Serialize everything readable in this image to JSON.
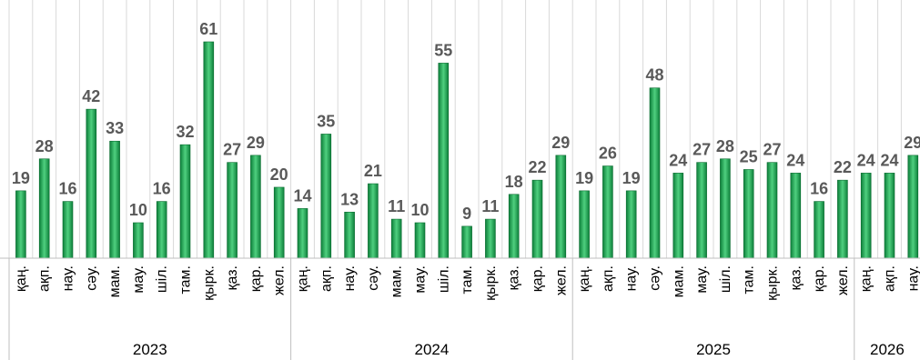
{
  "chart_data": {
    "type": "bar",
    "grid": true,
    "legend": "none",
    "ylim": [
      0,
      65
    ],
    "colors": {
      "bar_dark": "#0d7f3a",
      "bar_light": "#4fd07f",
      "grid": "#d9d9d9",
      "axis": "#bfbfbf",
      "value_label": "#595959"
    },
    "years": [
      {
        "label": "2023",
        "count": 12
      },
      {
        "label": "2024",
        "count": 12
      },
      {
        "label": "2025",
        "count": 12
      },
      {
        "label": "2026",
        "count": 3
      }
    ],
    "categories": [
      "қаң.",
      "ақп.",
      "нау.",
      "сәу.",
      "мам.",
      "мау.",
      "шіл.",
      "там.",
      "қырк.",
      "қаз.",
      "қар.",
      "жел.",
      "қаң.",
      "ақп.",
      "нау.",
      "сәу.",
      "мам.",
      "мау.",
      "шіл.",
      "там.",
      "қырк.",
      "қаз.",
      "қар.",
      "жел.",
      "қаң.",
      "ақп.",
      "нау.",
      "сәу.",
      "мам.",
      "мау.",
      "шіл.",
      "там.",
      "қырк.",
      "қаз.",
      "қар.",
      "жел.",
      "қаң.",
      "ақп.",
      "нау."
    ],
    "values": [
      19,
      28,
      16,
      42,
      33,
      10,
      16,
      32,
      61,
      27,
      29,
      20,
      14,
      35,
      13,
      21,
      11,
      10,
      55,
      9,
      11,
      18,
      22,
      29,
      19,
      26,
      19,
      48,
      24,
      27,
      28,
      25,
      27,
      24,
      16,
      22,
      24,
      24,
      29
    ]
  }
}
